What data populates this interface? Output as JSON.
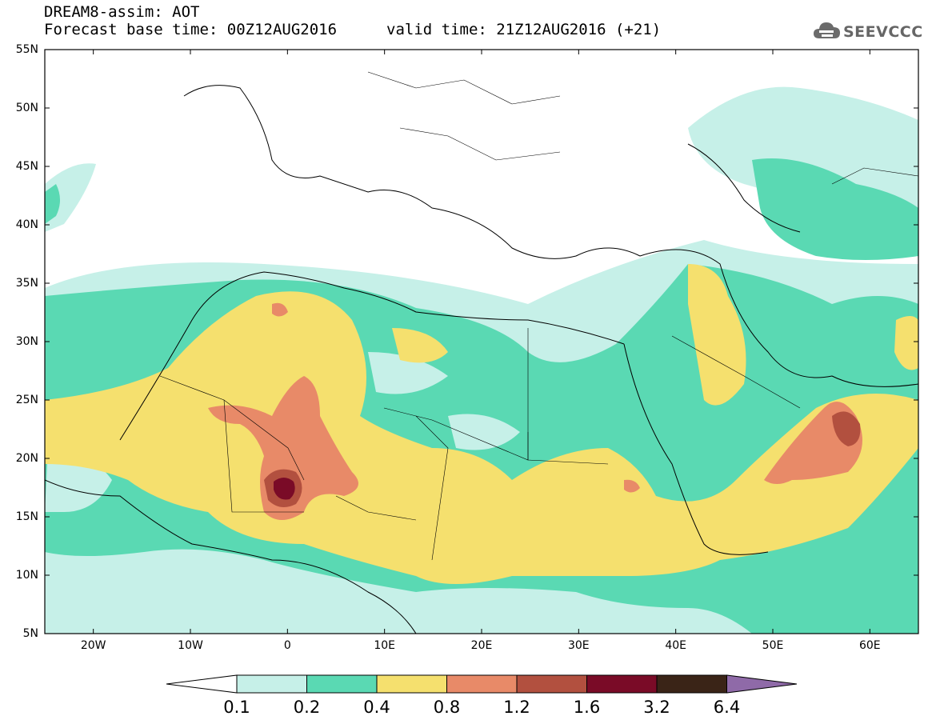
{
  "header": {
    "title": "DREAM8-assim: AOT",
    "base_time": "Forecast base time: 00Z12AUG2016",
    "valid_time": "valid time: 21Z12AUG2016 (+21)"
  },
  "logo": {
    "text": "SEEVCCC",
    "icon": "cloud-icon"
  },
  "map": {
    "lat_labels": [
      "55N",
      "50N",
      "45N",
      "40N",
      "35N",
      "30N",
      "25N",
      "20N",
      "15N",
      "10N",
      "5N"
    ],
    "lon_labels": [
      "20W",
      "10W",
      "0",
      "10E",
      "20E",
      "30E",
      "40E",
      "50E",
      "60E"
    ],
    "lon_range": [
      -25,
      65
    ],
    "lat_range": [
      5,
      55
    ]
  },
  "colorbar": {
    "labels": [
      "0.1",
      "0.2",
      "0.4",
      "0.8",
      "1.2",
      "1.6",
      "3.2",
      "6.4"
    ],
    "colors": {
      "below": "#ffffff",
      "c01_02": "#c6f0e8",
      "c02_04": "#5ad9b3",
      "c04_08": "#f5e06e",
      "c08_12": "#e88a68",
      "c12_16": "#b2503f",
      "c16_32": "#7a0b27",
      "c32_64": "#3a2417",
      "above": "#8f6aa8"
    }
  }
}
